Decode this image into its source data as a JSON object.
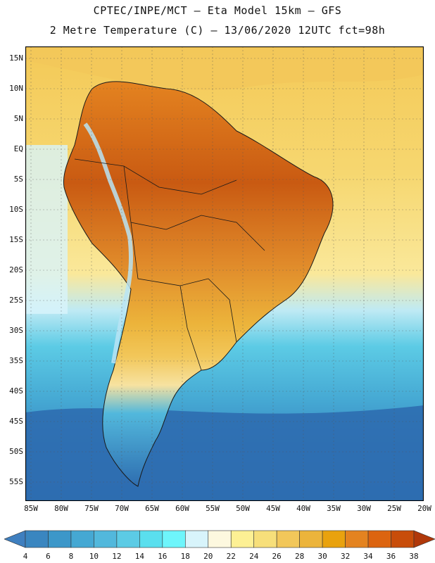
{
  "header": {
    "line1": "CPTEC/INPE/MCT –  Eta Model 15km – GFS",
    "line2": "2 Metre Temperature (C) – 13/06/2020 12UTC fct=98h"
  },
  "axes": {
    "lat_labels": [
      "15N",
      "10N",
      "5N",
      "EQ",
      "5S",
      "10S",
      "15S",
      "20S",
      "25S",
      "30S",
      "35S",
      "40S",
      "45S",
      "50S",
      "55S"
    ],
    "lon_labels": [
      "85W",
      "80W",
      "75W",
      "70W",
      "65W",
      "60W",
      "55W",
      "50W",
      "45W",
      "40W",
      "35W",
      "30W",
      "25W",
      "20W"
    ]
  },
  "colorbar": {
    "levels": [
      "4",
      "6",
      "8",
      "10",
      "12",
      "14",
      "16",
      "18",
      "20",
      "22",
      "24",
      "26",
      "28",
      "30",
      "32",
      "34",
      "36",
      "38"
    ],
    "colors": [
      "#3f7fbf",
      "#3a86c0",
      "#3c97c9",
      "#45a8d3",
      "#52b8dc",
      "#5ccbe5",
      "#5adfee",
      "#6ef5fb",
      "#d8f4fb",
      "#fdf8df",
      "#fdf094",
      "#f7df7a",
      "#f2c75a",
      "#ecb43b",
      "#e9a20e",
      "#e48320",
      "#dc6410",
      "#c84d0a",
      "#b0380a"
    ]
  },
  "map": {
    "region": "South America",
    "palette": {
      "ocean_cold": "#2e6db0",
      "ocean_cool": "#4aa8d6",
      "ocean_mild": "#8fd9ec",
      "ocean_warm": "#f7e27a",
      "atlantic_north": "#f4cc5a",
      "land_hot": "#c95a12",
      "land_warm": "#e79a32",
      "land_mild": "#f0c45a",
      "andes": "#b9e4f4",
      "patagonia": "#3f86c4"
    }
  }
}
